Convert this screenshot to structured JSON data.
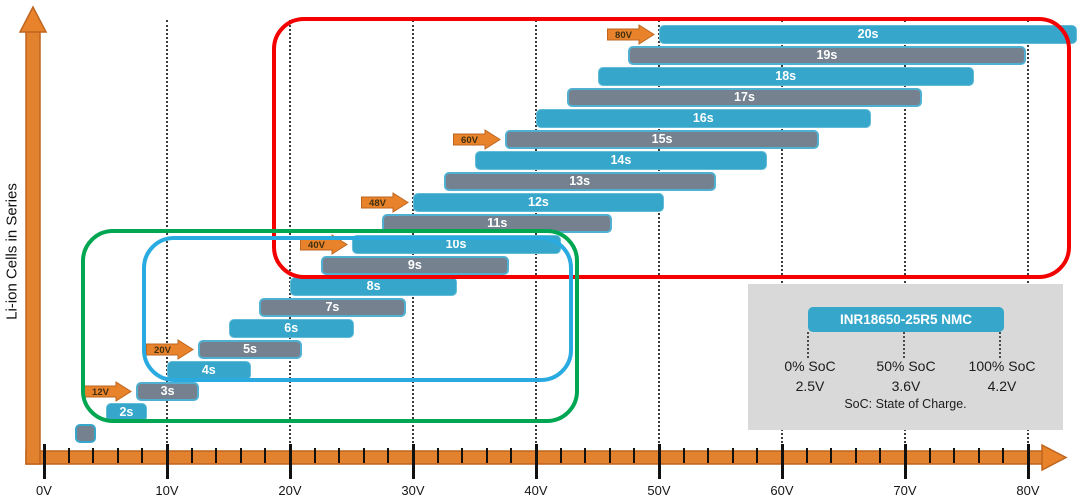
{
  "colors": {
    "bar_blue": "#36a7cb",
    "bar_gray": "#75818f",
    "axis_orange": "#e2812e",
    "axis_orange_dark": "#be651e",
    "arrow_orange": "#e8832b",
    "arrow_text": "#402e10",
    "box_red": "#f40000",
    "box_green": "#00a651",
    "box_blue": "#29abe2",
    "legend_bg": "#d9d9d9"
  },
  "chart_data": {
    "type": "bar",
    "orientation": "horizontal-range-bars",
    "title": "",
    "ylabel": "Li-ion Cells in Series",
    "xlabel": "",
    "x_unit": "V",
    "x_ticks": [
      "0V",
      "10V",
      "20V",
      "30V",
      "40V",
      "50V",
      "60V",
      "70V",
      "80V"
    ],
    "x_tick_volts": [
      0,
      10,
      20,
      30,
      40,
      50,
      60,
      70,
      80
    ],
    "x_minor_step_volts": 2,
    "x_range_volts": [
      0,
      84
    ],
    "grid": "dotted-vertical-every-10V",
    "cell_voltage": {
      "min_v": 2.5,
      "nominal_v": 3.6,
      "max_v": 4.2
    },
    "series": [
      {
        "label": "20s",
        "cells": 20,
        "min_v": 50.0,
        "max_v": 84.0,
        "style": "blue"
      },
      {
        "label": "19s",
        "cells": 19,
        "min_v": 47.5,
        "max_v": 79.8,
        "style": "gray"
      },
      {
        "label": "18s",
        "cells": 18,
        "min_v": 45.0,
        "max_v": 75.6,
        "style": "blue"
      },
      {
        "label": "17s",
        "cells": 17,
        "min_v": 42.5,
        "max_v": 71.4,
        "style": "gray"
      },
      {
        "label": "16s",
        "cells": 16,
        "min_v": 40.0,
        "max_v": 67.2,
        "style": "blue"
      },
      {
        "label": "15s",
        "cells": 15,
        "min_v": 37.5,
        "max_v": 63.0,
        "style": "gray"
      },
      {
        "label": "14s",
        "cells": 14,
        "min_v": 35.0,
        "max_v": 58.8,
        "style": "blue"
      },
      {
        "label": "13s",
        "cells": 13,
        "min_v": 32.5,
        "max_v": 54.6,
        "style": "gray"
      },
      {
        "label": "12s",
        "cells": 12,
        "min_v": 30.0,
        "max_v": 50.4,
        "style": "blue"
      },
      {
        "label": "11s",
        "cells": 11,
        "min_v": 27.5,
        "max_v": 46.2,
        "style": "gray"
      },
      {
        "label": "10s",
        "cells": 10,
        "min_v": 25.0,
        "max_v": 42.0,
        "style": "blue"
      },
      {
        "label": "9s",
        "cells": 9,
        "min_v": 22.5,
        "max_v": 37.8,
        "style": "gray"
      },
      {
        "label": "8s",
        "cells": 8,
        "min_v": 20.0,
        "max_v": 33.6,
        "style": "blue"
      },
      {
        "label": "7s",
        "cells": 7,
        "min_v": 17.5,
        "max_v": 29.4,
        "style": "gray"
      },
      {
        "label": "6s",
        "cells": 6,
        "min_v": 15.0,
        "max_v": 25.2,
        "style": "blue"
      },
      {
        "label": "5s",
        "cells": 5,
        "min_v": 12.5,
        "max_v": 21.0,
        "style": "gray"
      },
      {
        "label": "4s",
        "cells": 4,
        "min_v": 10.0,
        "max_v": 16.8,
        "style": "blue"
      },
      {
        "label": "3s",
        "cells": 3,
        "min_v": 7.5,
        "max_v": 12.6,
        "style": "gray"
      },
      {
        "label": "2s",
        "cells": 2,
        "min_v": 5.0,
        "max_v": 8.4,
        "style": "blue"
      },
      {
        "label": "",
        "cells": 1,
        "min_v": 2.5,
        "max_v": 4.2,
        "style": "outline"
      }
    ],
    "system_arrows": [
      {
        "label": "80V",
        "target_cells": 20
      },
      {
        "label": "60V",
        "target_cells": 15
      },
      {
        "label": "48V",
        "target_cells": 12
      },
      {
        "label": "40V",
        "target_cells": 10
      },
      {
        "label": "20V",
        "target_cells": 5
      },
      {
        "label": "12V",
        "target_cells": 3
      }
    ],
    "group_boxes": [
      {
        "name": "red-group",
        "color": "#f40000",
        "cells": [
          9,
          20
        ],
        "volts": [
          18.5,
          83.5
        ]
      },
      {
        "name": "green-group",
        "color": "#00a651",
        "cells": [
          2,
          10
        ],
        "volts": [
          3.0,
          43.5
        ]
      },
      {
        "name": "blue-group",
        "color": "#29abe2",
        "cells": [
          4,
          10
        ],
        "volts": [
          8.0,
          43.0
        ]
      }
    ]
  },
  "legend": {
    "battery_label": "INR18650-25R5 NMC",
    "points": [
      {
        "soc": "0% SoC",
        "voltage": "2.5V"
      },
      {
        "soc": "50% SoC",
        "voltage": "3.6V"
      },
      {
        "soc": "100% SoC",
        "voltage": "4.2V"
      }
    ],
    "note": "SoC: State of Charge."
  }
}
